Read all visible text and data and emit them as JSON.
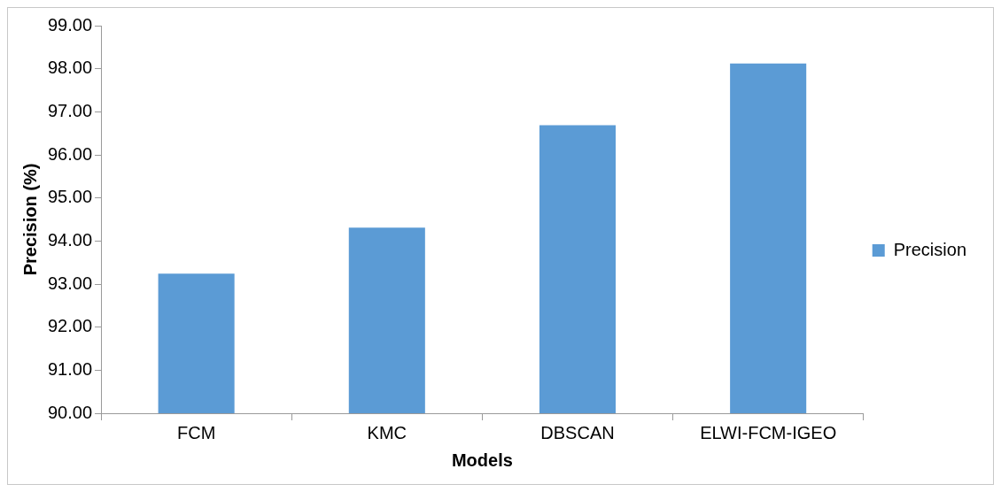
{
  "chart_data": {
    "type": "bar",
    "xlabel": "Models",
    "ylabel": "Precision (%)",
    "categories": [
      "FCM",
      "KMC",
      "DBSCAN",
      "ELWI-FCM-IGEO"
    ],
    "series": [
      {
        "name": "Precision",
        "color": "#5b9bd5",
        "values": [
          93.24,
          94.31,
          96.69,
          98.12
        ]
      }
    ],
    "ylim": [
      90,
      99
    ],
    "yticks": [
      {
        "value": 90,
        "label": "90.00"
      },
      {
        "value": 91,
        "label": "91.00"
      },
      {
        "value": 92,
        "label": "92.00"
      },
      {
        "value": 93,
        "label": "93.00"
      },
      {
        "value": 94,
        "label": "94.00"
      },
      {
        "value": 95,
        "label": "95.00"
      },
      {
        "value": 96,
        "label": "96.00"
      },
      {
        "value": 97,
        "label": "97.00"
      },
      {
        "value": 98,
        "label": "98.00"
      },
      {
        "value": 99,
        "label": "99.00"
      }
    ],
    "grid": false,
    "legend": "right"
  }
}
